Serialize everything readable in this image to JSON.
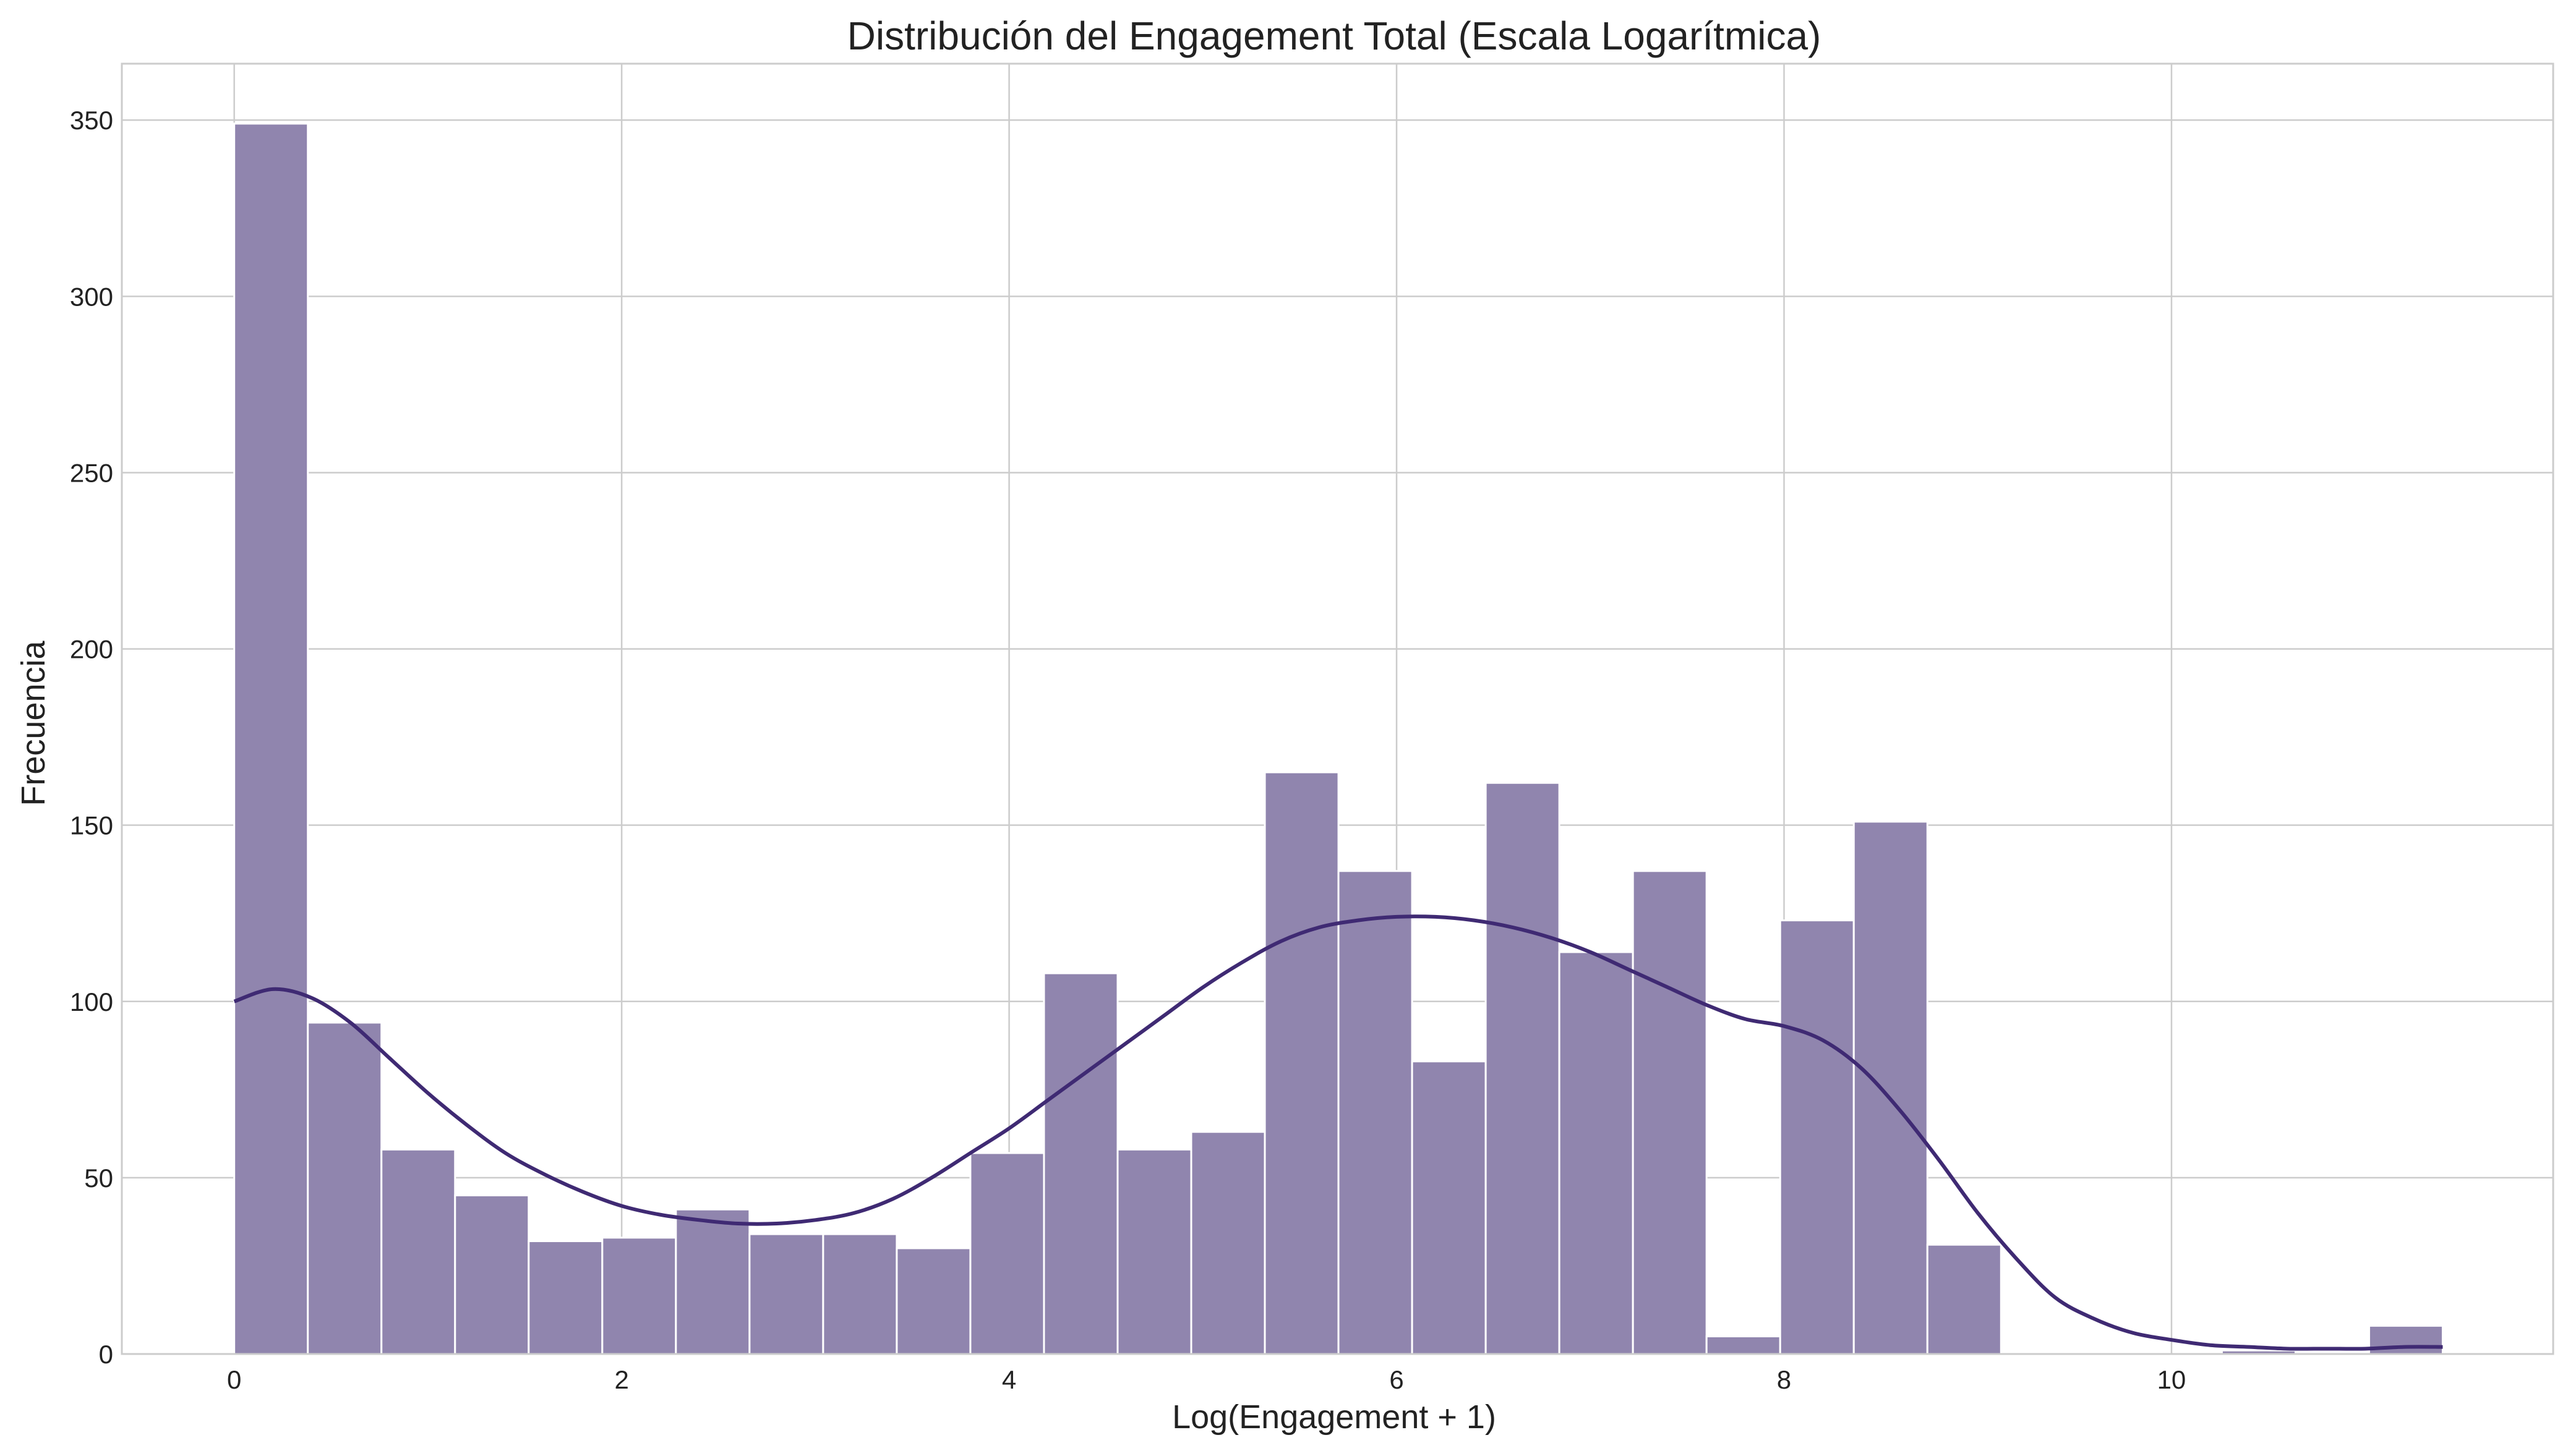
{
  "chart_data": {
    "type": "bar",
    "subtype": "histogram-with-kde",
    "title": "Distribución del Engagement Total (Escala Logarítmica)",
    "xlabel": "Log(Engagement + 1)",
    "ylabel": "Frecuencia",
    "xlim": [
      -0.58,
      11.97
    ],
    "ylim": [
      0,
      366
    ],
    "xticks": [
      0,
      2,
      4,
      6,
      8,
      10
    ],
    "yticks": [
      0,
      50,
      100,
      150,
      200,
      250,
      300,
      350
    ],
    "grid": true,
    "bin_start": 0,
    "bin_width": 0.38,
    "values": [
      349,
      94,
      58,
      45,
      32,
      33,
      41,
      34,
      34,
      30,
      57,
      108,
      58,
      63,
      165,
      137,
      83,
      162,
      114,
      137,
      5,
      123,
      151,
      31,
      0,
      0,
      0,
      1,
      0,
      8
    ],
    "kde": {
      "x": [
        0,
        0.2,
        0.4,
        0.6,
        0.8,
        1.0,
        1.2,
        1.4,
        1.6,
        1.8,
        2.0,
        2.2,
        2.4,
        2.6,
        2.8,
        3.0,
        3.2,
        3.4,
        3.6,
        3.8,
        4.0,
        4.2,
        4.4,
        4.6,
        4.8,
        5.0,
        5.2,
        5.4,
        5.6,
        5.8,
        6.0,
        6.2,
        6.4,
        6.6,
        6.8,
        7.0,
        7.2,
        7.4,
        7.6,
        7.8,
        8.0,
        8.2,
        8.4,
        8.6,
        8.8,
        9.0,
        9.2,
        9.4,
        9.6,
        9.8,
        10.0,
        10.2,
        10.4,
        10.6,
        10.8,
        11.0,
        11.2,
        11.4
      ],
      "y": [
        100,
        103.5,
        101,
        94,
        84,
        74,
        65,
        57,
        51,
        46,
        42,
        39.5,
        38,
        37,
        37,
        38,
        40,
        44,
        50,
        57,
        64,
        72,
        80,
        88,
        96,
        104,
        111,
        117,
        121,
        123,
        124,
        124,
        123,
        121,
        118,
        114,
        109,
        104,
        99,
        95,
        93,
        89,
        81,
        69,
        55,
        40,
        27,
        16,
        10,
        6,
        4,
        2.5,
        2,
        1.5,
        1.5,
        1.5,
        2,
        2
      ]
    },
    "bar_color": "#9085ae",
    "bar_edge_color": "#ffffff",
    "line_color": "#3f2a73",
    "grid_color": "#cccccc"
  }
}
